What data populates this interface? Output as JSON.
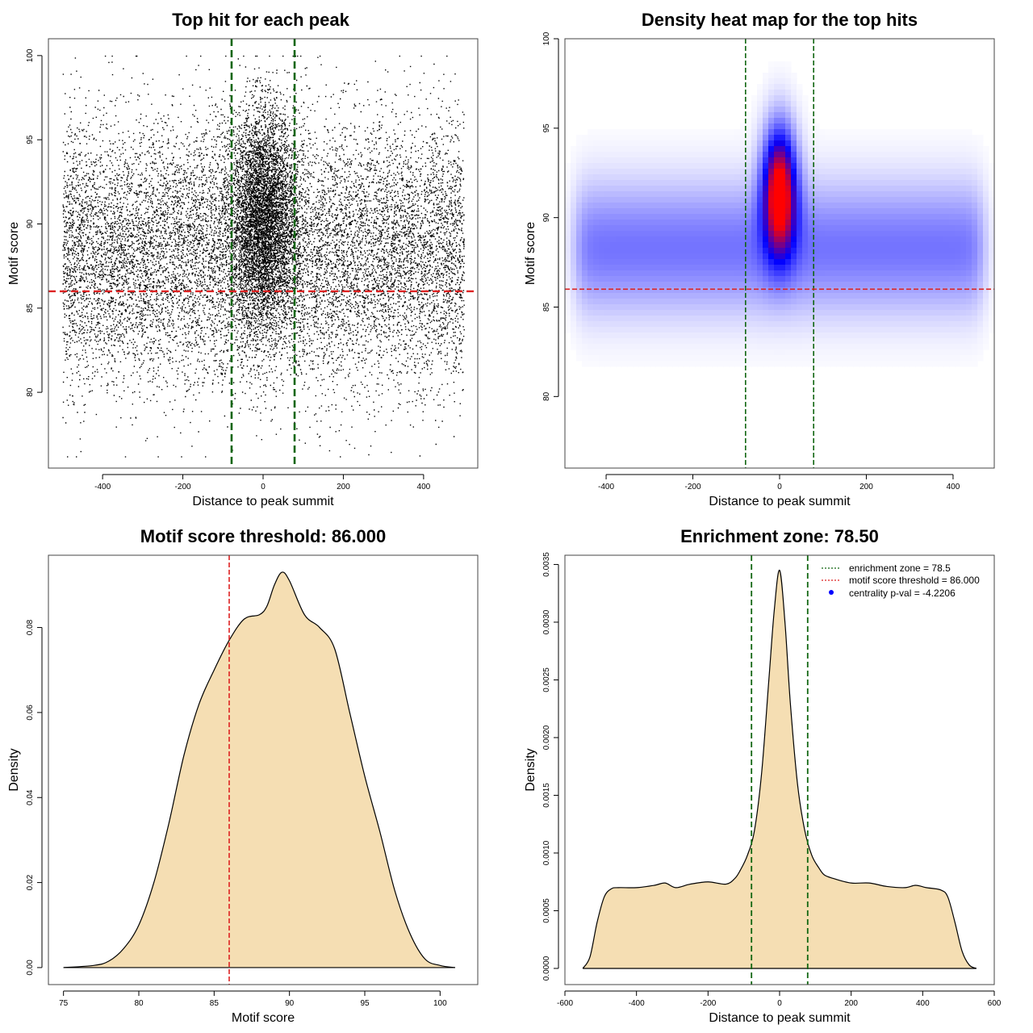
{
  "colors": {
    "points": "#000000",
    "threshold_line": "#dd2222",
    "zone_line": "#116611",
    "density_fill": "#f5deb3",
    "heat_low": "#ffffff",
    "heat_mid": "#0000ff",
    "heat_high": "#ff0000",
    "legend_dot": "#0000ff"
  },
  "chart_data": [
    {
      "id": "scatter",
      "type": "scatter",
      "title": "Top hit for each peak",
      "xlabel": "Distance to peak summit",
      "ylabel": "Motif score",
      "xlim": [
        -535,
        535
      ],
      "ylim": [
        75.5,
        101
      ],
      "xticks": [
        -400,
        -200,
        0,
        200,
        400
      ],
      "yticks": [
        80,
        85,
        90,
        95,
        100
      ],
      "x_range_of_points": [
        -500,
        500
      ],
      "center_sd": 40,
      "vlines": [
        -78.5,
        78.5
      ],
      "hline": 86
    },
    {
      "id": "heatmap",
      "type": "heatmap",
      "title": "Density heat map for the top hits",
      "xlabel": "Distance to peak summit",
      "ylabel": "Motif score",
      "xlim": [
        -495,
        495
      ],
      "ylim": [
        76,
        100
      ],
      "xticks": [
        -400,
        -200,
        0,
        200,
        400
      ],
      "yticks": [
        80,
        85,
        90,
        95,
        100
      ],
      "vlines": [
        -78.5,
        78.5
      ],
      "hline": 86,
      "hotspot": {
        "x": 0,
        "y": 91.5
      }
    },
    {
      "id": "score_density",
      "type": "area",
      "title": "Motif score threshold: 86.000",
      "xlabel": "Motif score",
      "ylabel": "Density",
      "xlim": [
        74,
        102.5
      ],
      "ylim": [
        -0.004,
        0.097
      ],
      "xticks": [
        75,
        80,
        85,
        90,
        95,
        100
      ],
      "yticks": [
        0.0,
        0.02,
        0.04,
        0.06,
        0.08
      ],
      "ytick_labels": [
        "0.00",
        "0.02",
        "0.04",
        "0.06",
        "0.08"
      ],
      "vline": 86,
      "x": [
        75,
        77,
        78,
        79,
        80,
        81,
        82,
        83,
        84,
        85,
        86,
        87,
        88,
        88.5,
        89,
        89.5,
        90,
        91,
        92,
        93,
        94,
        95,
        96,
        97,
        98,
        99,
        100,
        101
      ],
      "y": [
        0,
        0.0005,
        0.0015,
        0.0045,
        0.01,
        0.02,
        0.034,
        0.05,
        0.062,
        0.07,
        0.077,
        0.082,
        0.083,
        0.085,
        0.09,
        0.093,
        0.091,
        0.083,
        0.08,
        0.075,
        0.06,
        0.045,
        0.032,
        0.018,
        0.008,
        0.002,
        0.0005,
        0
      ]
    },
    {
      "id": "distance_density",
      "type": "area",
      "title": "Enrichment zone: 78.50",
      "xlabel": "Distance to peak summit",
      "ylabel": "Density",
      "xlim": [
        -600,
        600
      ],
      "ylim": [
        -0.00014,
        0.00358
      ],
      "xticks": [
        -600,
        -400,
        -200,
        0,
        200,
        400,
        600
      ],
      "yticks": [
        0.0,
        0.0005,
        0.001,
        0.0015,
        0.002,
        0.0025,
        0.003,
        0.0035
      ],
      "ytick_labels": [
        "0.0000",
        "0.0005",
        "0.0010",
        "0.0015",
        "0.0020",
        "0.0025",
        "0.0030",
        "0.0035"
      ],
      "vlines": [
        -78.5,
        78.5
      ],
      "x": [
        -550,
        -530,
        -510,
        -490,
        -470,
        -450,
        -400,
        -350,
        -320,
        -290,
        -250,
        -200,
        -150,
        -125,
        -110,
        -90,
        -70,
        -50,
        -30,
        -15,
        0,
        15,
        30,
        50,
        70,
        90,
        110,
        125,
        150,
        200,
        250,
        300,
        350,
        380,
        410,
        450,
        470,
        490,
        510,
        530,
        550
      ],
      "y": [
        0,
        0.0001,
        0.0004,
        0.00062,
        0.00069,
        0.0007,
        0.0007,
        0.00072,
        0.00074,
        0.0007,
        0.00073,
        0.00075,
        0.00073,
        0.00078,
        0.00085,
        0.00098,
        0.0012,
        0.0017,
        0.0025,
        0.0031,
        0.00345,
        0.003,
        0.0023,
        0.0016,
        0.0012,
        0.00098,
        0.00087,
        0.00081,
        0.00078,
        0.00074,
        0.00074,
        0.00071,
        0.0007,
        0.00072,
        0.0007,
        0.00068,
        0.00062,
        0.0004,
        0.00015,
        3e-05,
        0
      ],
      "legend": [
        {
          "label": "enrichment zone = 78.5",
          "style": "dotted-line",
          "color": "#116611"
        },
        {
          "label": "motif score threshold = 86.000",
          "style": "dotted-line",
          "color": "#dd2222"
        },
        {
          "label": "centrality p-val = -4.2206",
          "style": "dot",
          "color": "#0000ff"
        }
      ],
      "legend_position": "top-right"
    }
  ]
}
